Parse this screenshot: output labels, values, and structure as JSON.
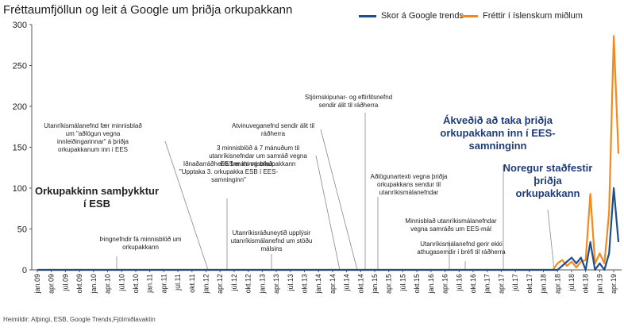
{
  "page": {
    "title": "Fréttaumfjöllun og leit á Google um þriðja orkupakkann",
    "source": "Heimildir: Alþingi, ESB, Google Trends,Fjölmiðlavaktin"
  },
  "chart_data": {
    "type": "line",
    "title": "Fréttaumfjöllun og leit á Google um þriðja orkupakkann",
    "ylim": [
      0,
      300
    ],
    "yticks": [
      "300",
      "250",
      "200",
      "150",
      "100",
      "50",
      "0"
    ],
    "legend_position": "top-right",
    "x_labels": [
      "jan.09",
      "apr.09",
      "júl.09",
      "okt.09",
      "jan.10",
      "apr.10",
      "júl.10",
      "okt.10",
      "jan.11",
      "apr.11",
      "júl.11",
      "okt.11",
      "jan.12",
      "apr.12",
      "júl.12",
      "okt.12",
      "jan.13",
      "apr.13",
      "júl.13",
      "okt.13",
      "jan.14",
      "apr.14",
      "júl.14",
      "okt.14",
      "jan.15",
      "apr.15",
      "júl.15",
      "okt.15",
      "jan.16",
      "apr.16",
      "júl.16",
      "okt.16",
      "jan.17",
      "apr.17",
      "júl.17",
      "okt.17",
      "jan.18",
      "apr.18",
      "júl.18",
      "okt.18",
      "jan.19",
      "apr.19"
    ],
    "series": [
      {
        "name": "Skor á Google trends",
        "color": "#1f4e8c",
        "points": [
          [
            "jan.09",
            0
          ],
          [
            "jan.18",
            0
          ],
          [
            "apr.18",
            0
          ],
          [
            "júl.18",
            15
          ],
          [
            "ágú.18",
            8
          ],
          [
            "sep.18",
            15
          ],
          [
            "okt.18",
            0
          ],
          [
            "nóv.18",
            34
          ],
          [
            "des.18",
            0
          ],
          [
            "jan.19",
            8
          ],
          [
            "feb.19",
            0
          ],
          [
            "mar.19",
            20
          ],
          [
            "apr.19",
            100
          ],
          [
            "maí.19",
            34
          ]
        ]
      },
      {
        "name": "Fréttir í íslenskum miðlum",
        "color": "#f28a1e",
        "points": [
          [
            "jan.09",
            0
          ],
          [
            "mar.18",
            0
          ],
          [
            "apr.18",
            8
          ],
          [
            "maí.18",
            12
          ],
          [
            "jún.18",
            5
          ],
          [
            "júl.18",
            10
          ],
          [
            "ágú.18",
            3
          ],
          [
            "sep.18",
            10
          ],
          [
            "okt.18",
            12
          ],
          [
            "nóv.18",
            93
          ],
          [
            "des.18",
            8
          ],
          [
            "jan.19",
            20
          ],
          [
            "feb.19",
            8
          ],
          [
            "mar.19",
            70
          ],
          [
            "apr.19",
            286
          ],
          [
            "maí.19",
            142
          ]
        ]
      }
    ],
    "annotations": [
      {
        "key": "ann_esb",
        "text": [
          "Orkupakkinn samþykktur",
          "í ESB"
        ]
      },
      {
        "key": "ann_thing",
        "text": [
          "Þingnefndir fá minnisblöð um",
          "orkupakkann"
        ]
      },
      {
        "key": "ann_utan1",
        "text": [
          "Utanríkismálanefnd fær minnisblað",
          "um \"aðlögun vegna",
          "innleiðingarinnar\" á þriðja",
          "orkupakkanum inn í EES"
        ]
      },
      {
        "key": "ann_idnadar",
        "text": [
          "Iðnaðarráðherra fær minnisblað:",
          "\"Upptaka 3. orkupakka ESB í EES-",
          "samninginn\""
        ]
      },
      {
        "key": "ann_3minn",
        "text": [
          "3 minnisblöð á 7 mánuðum til",
          "utanríkisnefndar um samráð vegna",
          "EES-máls og orkupakkann"
        ]
      },
      {
        "key": "ann_utanr_upp",
        "text": [
          "Utanríkisráðuneytið upplýsir",
          "utanríkismálanefnd um stöðu",
          "málsins"
        ]
      },
      {
        "key": "ann_atvinnu",
        "text": [
          "Atvinuveganefnd sendir álit til",
          "ráðherra"
        ]
      },
      {
        "key": "ann_stjorn",
        "text": [
          "Stjórnskipunar- og eftirlitsnefnd",
          "sendir álit til ráðherra"
        ]
      },
      {
        "key": "ann_adlogun",
        "text": [
          "Aðlögunartexti vegna þriðja",
          "orkupakkans sendur til",
          "utanríkismálanefndar"
        ]
      },
      {
        "key": "ann_minnis",
        "text": [
          "Minnisblað utanríkismálanefndar",
          "vegna samráðs um EES-mál"
        ]
      },
      {
        "key": "ann_gerir",
        "text": [
          "Utanríkismálanefnd gerir ekki",
          "athugasemdir í bréfi til ráðherra"
        ]
      },
      {
        "key": "ann_akvedid",
        "text": [
          "Ákveðið að taka þriðja",
          "orkupakkann inn í EES-",
          "samninginn"
        ]
      },
      {
        "key": "ann_noregur",
        "text": [
          "Noregur staðfestir",
          "þriðja",
          "orkupakkann"
        ]
      }
    ]
  }
}
